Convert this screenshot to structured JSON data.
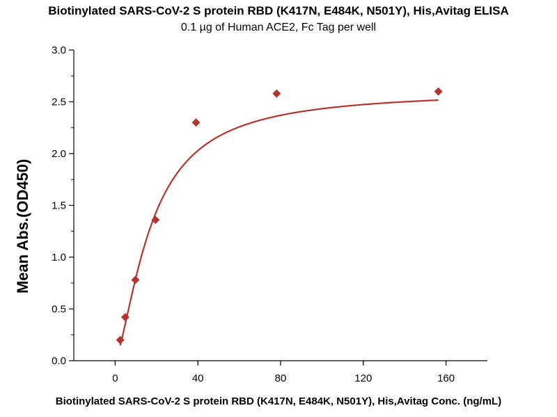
{
  "chart_data": {
    "type": "scatter",
    "title": "Biotinylated SARS-CoV-2 S protein RBD (K417N, E484K, N501Y), His,Avitag ELISA",
    "subtitle": "0.1 µg of Human ACE2, Fc Tag per well",
    "xlabel": "Biotinylated SARS-CoV-2 S protein RBD (K417N, E484K, N501Y), His,Avitag Conc. (ng/mL)",
    "ylabel": "Mean Abs.(OD450)",
    "xlim": [
      -20,
      180
    ],
    "ylim": [
      0,
      3.0
    ],
    "xticks": [
      0,
      40,
      80,
      120,
      160
    ],
    "yticks": [
      0.0,
      0.5,
      1.0,
      1.5,
      2.0,
      2.5,
      3.0
    ],
    "grid": false,
    "legend": "none",
    "series": [
      {
        "marker": "diamond",
        "color": "#b5332e",
        "x": [
          2.44,
          4.88,
          9.77,
          19.5,
          39.1,
          78.1,
          156.3
        ],
        "y": [
          0.2,
          0.42,
          0.78,
          1.36,
          2.3,
          2.58,
          2.6
        ]
      }
    ],
    "fit_curve": {
      "color": "#b5332e",
      "model": "4PL",
      "top": 2.61,
      "bottom": 0.02,
      "ec50": 17.5,
      "hill": 1.5
    }
  }
}
